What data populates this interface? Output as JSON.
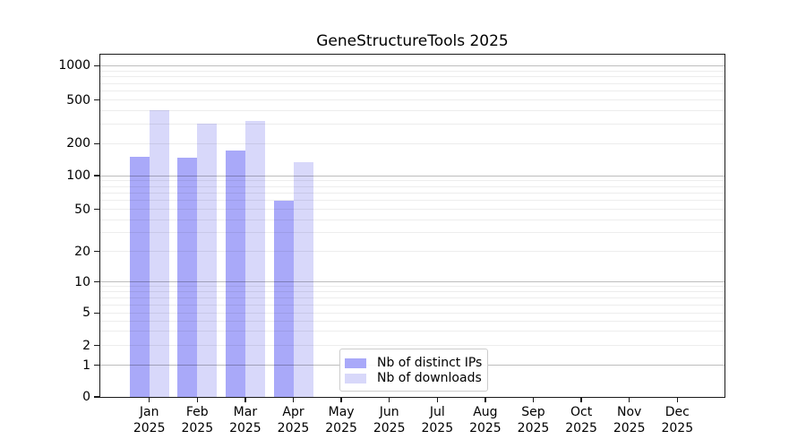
{
  "title": "GeneStructureTools 2025",
  "legend": {
    "items": [
      {
        "label": "Nb of distinct IPs",
        "color": "#a9a9f9"
      },
      {
        "label": "Nb of downloads",
        "color": "#d8d8fa"
      }
    ]
  },
  "chart_data": {
    "type": "bar",
    "title": "GeneStructureTools 2025",
    "categories": [
      "Jan 2025",
      "Feb 2025",
      "Mar 2025",
      "Apr 2025",
      "May 2025",
      "Jun 2025",
      "Jul 2025",
      "Aug 2025",
      "Sep 2025",
      "Oct 2025",
      "Nov 2025",
      "Dec 2025"
    ],
    "month_labels": [
      "Jan",
      "Feb",
      "Mar",
      "Apr",
      "May",
      "Jun",
      "Jul",
      "Aug",
      "Sep",
      "Oct",
      "Nov",
      "Dec"
    ],
    "year_label": "2025",
    "series": [
      {
        "name": "Nb of distinct IPs",
        "color": "#a9a9f9",
        "values": [
          150,
          147,
          171,
          60,
          0,
          0,
          0,
          0,
          0,
          0,
          0,
          0
        ]
      },
      {
        "name": "Nb of downloads",
        "color": "#d8d8fa",
        "values": [
          405,
          305,
          325,
          135,
          0,
          0,
          0,
          0,
          0,
          0,
          0,
          0
        ]
      }
    ],
    "yticks": [
      0,
      1,
      2,
      5,
      10,
      20,
      50,
      100,
      200,
      500,
      1000
    ],
    "ylim": [
      0,
      1000
    ],
    "yscale": "log-like with compressed 0-2 region",
    "grid": true,
    "legend_position": "inside bottom-center",
    "xlabel": "",
    "ylabel": ""
  }
}
